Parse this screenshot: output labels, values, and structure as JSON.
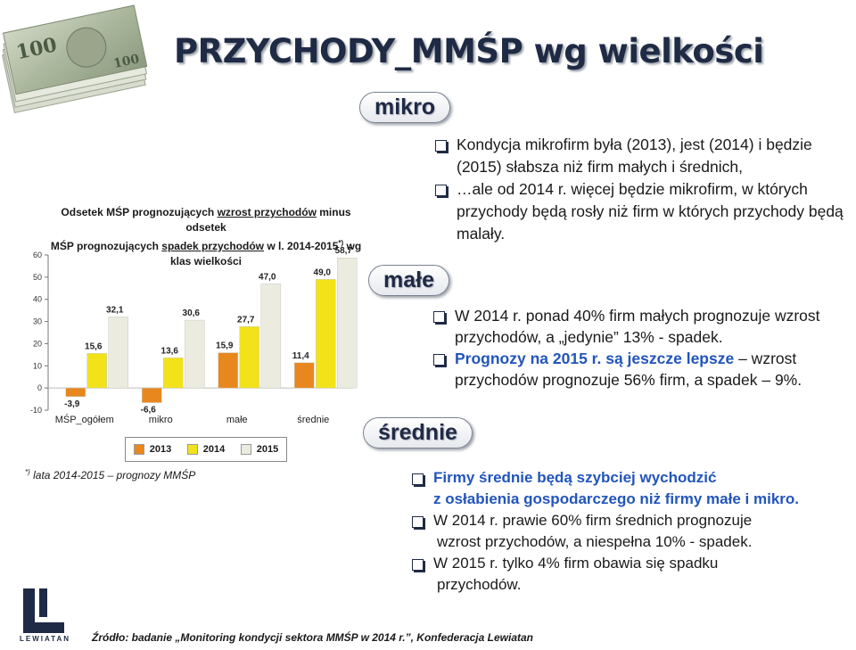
{
  "header": {
    "title": "PRZYCHODY_MMŚP wg wielkości"
  },
  "chart": {
    "title_line1_prefix": "Odsetek MŚP prognozujących ",
    "title_line1_ul": "wzrost przychodów",
    "title_line1_suffix": " minus odsetek",
    "title_line2_prefix": "MŚP prognozujących ",
    "title_line2_ul": "spadek przychodów",
    "title_line2_suffix": " w l. 2014-2015",
    "title_sup": "*)",
    "title_line3": " wg klas wielkości",
    "legend": [
      {
        "label": "2013",
        "color": "#e8871e"
      },
      {
        "label": "2014",
        "color": "#f2e21a"
      },
      {
        "label": "2015",
        "color": "#ebebe0"
      }
    ]
  },
  "chart_data": {
    "type": "bar",
    "categories": [
      "MŚP_ogółem",
      "mikro",
      "małe",
      "średnie"
    ],
    "series": [
      {
        "name": "2013",
        "values": [
          -3.9,
          -6.6,
          15.9,
          11.4
        ],
        "labels": [
          "-3,9",
          "-6,6",
          "15,9",
          "11,4"
        ]
      },
      {
        "name": "2014",
        "values": [
          15.6,
          13.6,
          27.7,
          49.0
        ],
        "labels": [
          "15,6",
          "13,6",
          "27,7",
          "49,0"
        ]
      },
      {
        "name": "2015",
        "values": [
          32.1,
          30.6,
          47.0,
          58.7
        ],
        "labels": [
          "32,1",
          "30,6",
          "47,0",
          "58,7"
        ]
      }
    ],
    "ylim": [
      -10,
      60
    ],
    "yticks": [
      -10,
      0,
      10,
      20,
      30,
      40,
      50,
      60
    ]
  },
  "footnote": {
    "sup": "*)",
    "text": " lata 2014-2015 – prognozy MMŚP"
  },
  "sections": {
    "mikro": {
      "label": "mikro",
      "bullets": [
        "Kondycja mikrofirm była (2013), jest (2014) i będzie (2015) słabsza niż firm małych i średnich,",
        "…ale od 2014 r. więcej będzie mikrofirm, w których przychody będą rosły niż firm w których przychody będą malały."
      ]
    },
    "male": {
      "label": "małe",
      "b1": "W 2014 r. ponad 40% firm małych prognozuje wzrost przychodów, a „jedynie” 13% - spadek.",
      "b2_hl": "Prognozy na 2015 r. są jeszcze lepsze",
      "b2_rest": " – wzrost przychodów prognozuje 56% firm, a spadek – 9%."
    },
    "srednie": {
      "label": "średnie",
      "b1_line1": "Firmy średnie będą szybciej wychodzić",
      "b1_line2": "z osłabienia gospodarczego niż firmy małe i mikro.",
      "b2_line1": "W 2014 r. prawie 60% firm średnich prognozuje",
      "b2_line2": "wzrost przychodów, a niespełna 10% - spadek.",
      "b3_line1": "W 2015 r. tylko 4% firm obawia się spadku",
      "b3_line2": "przychodów."
    }
  },
  "logo": {
    "text": "LEWIATAN"
  },
  "source": "Źródło: badanie „Monitoring kondycji sektora MMŚP w 2014 r.”, Konfederacja Lewiatan"
}
